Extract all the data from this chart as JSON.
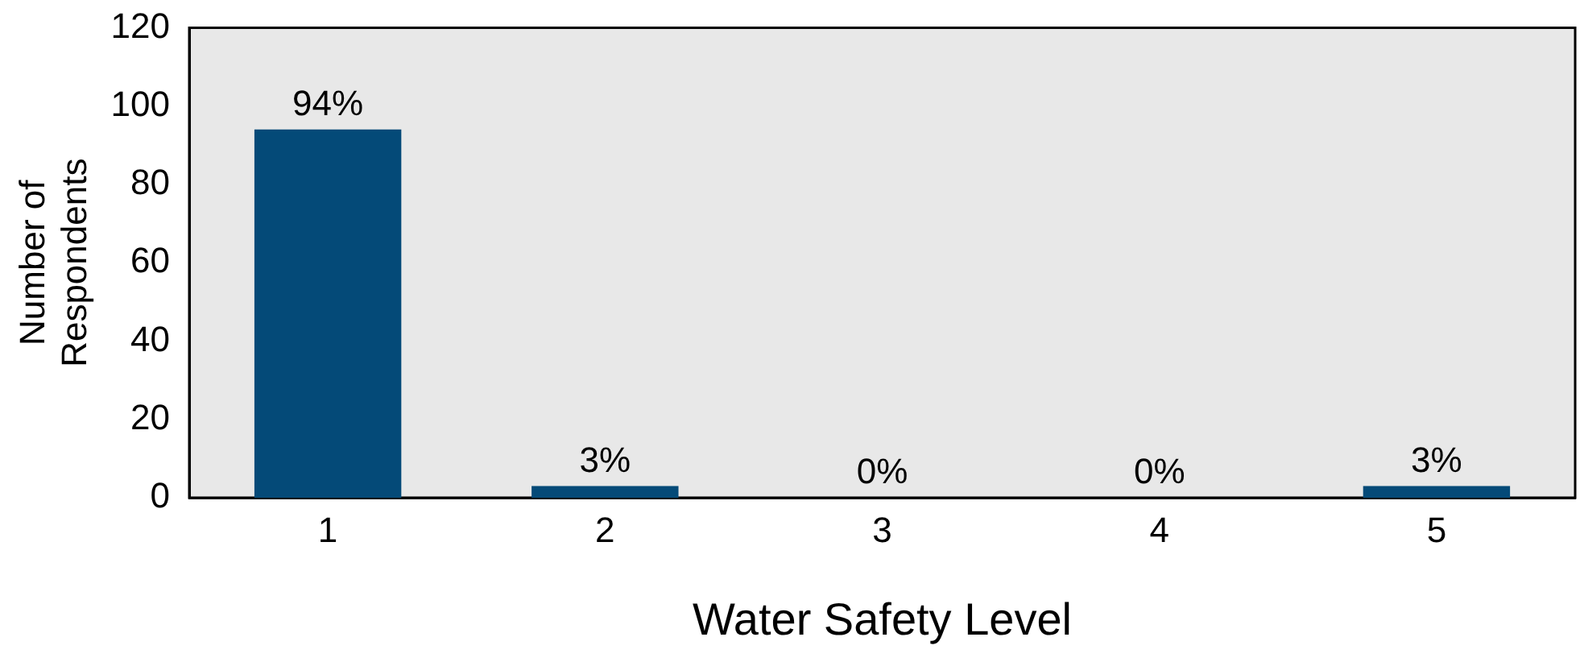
{
  "chart_data": {
    "type": "bar",
    "xlabel": "Water Safety Level",
    "ylabel": "Number of Respondents",
    "categories": [
      "1",
      "2",
      "3",
      "4",
      "5"
    ],
    "values": [
      94,
      3,
      0,
      0,
      3
    ],
    "value_labels": [
      "94%",
      "3%",
      "0%",
      "0%",
      "3%"
    ],
    "color": "#044a78",
    "ylim": [
      0,
      120
    ],
    "yticks": [
      0,
      20,
      40,
      60,
      80,
      100,
      120
    ],
    "grid": false,
    "legend": false
  }
}
